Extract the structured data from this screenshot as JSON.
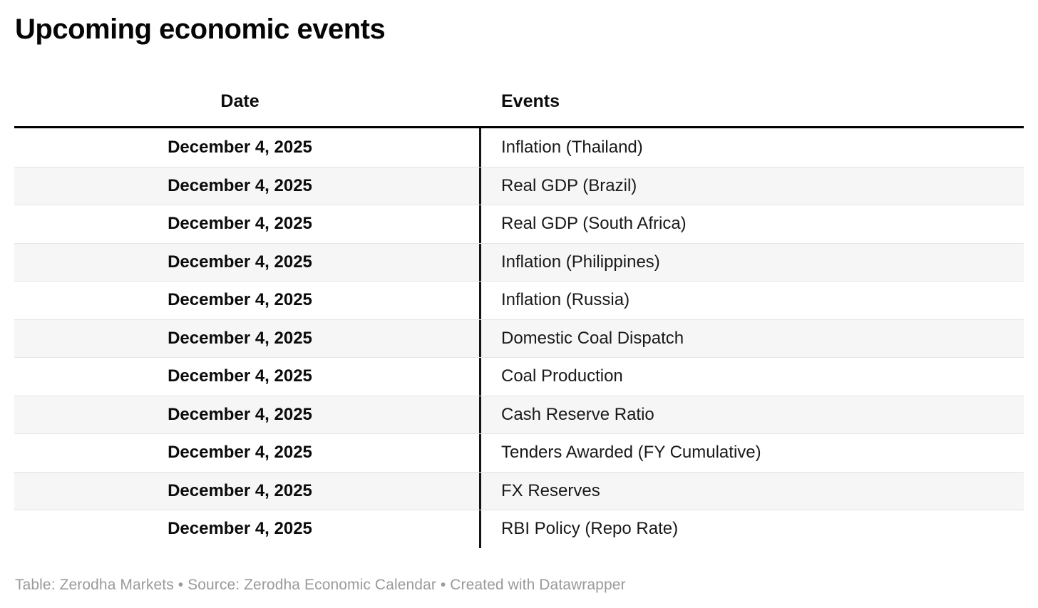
{
  "chart_data": {
    "type": "table",
    "title": "Upcoming economic events",
    "columns": [
      "Date",
      "Events"
    ],
    "rows": [
      {
        "date": "December 4, 2025",
        "event": "Inflation (Thailand)"
      },
      {
        "date": "December 4, 2025",
        "event": "Real GDP (Brazil)"
      },
      {
        "date": "December 4, 2025",
        "event": "Real GDP (South Africa)"
      },
      {
        "date": "December 4, 2025",
        "event": "Inflation (Philippines)"
      },
      {
        "date": "December 4, 2025",
        "event": "Inflation (Russia)"
      },
      {
        "date": "December 4, 2025",
        "event": "Domestic Coal Dispatch"
      },
      {
        "date": "December 4, 2025",
        "event": "Coal Production"
      },
      {
        "date": "December 4, 2025",
        "event": "Cash Reserve Ratio"
      },
      {
        "date": "December 4, 2025",
        "event": "Tenders Awarded (FY Cumulative)"
      },
      {
        "date": "December 4, 2025",
        "event": "FX Reserves"
      },
      {
        "date": "December 4, 2025",
        "event": "RBI Policy (Repo Rate)"
      }
    ],
    "layout_hints": {
      "date_column_align": "center",
      "events_column_align": "left",
      "zebra_striping": true
    }
  },
  "footer": {
    "text": "Table: Zerodha Markets • Source: Zerodha Economic Calendar • Created with Datawrapper"
  },
  "colors": {
    "background": "#ffffff",
    "text": "#0b0b0b",
    "stripe": "#f6f6f7",
    "row_separator": "#e4e4e4",
    "header_rule": "#000000",
    "column_divider": "#141414",
    "footer_text": "#9a9a9a"
  }
}
